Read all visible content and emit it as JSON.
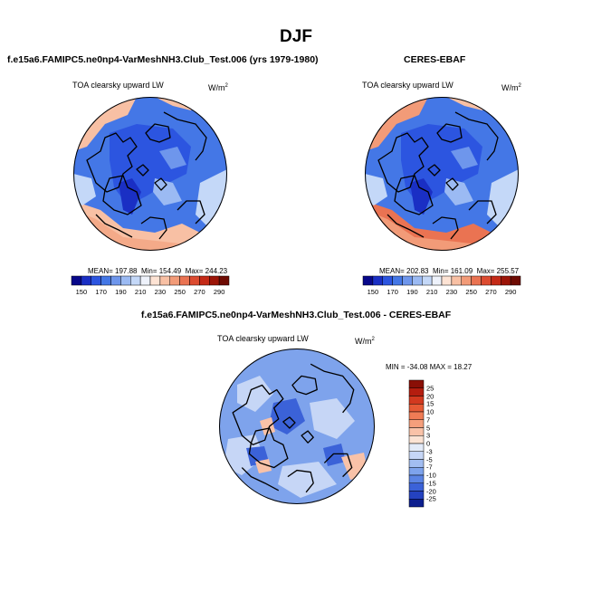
{
  "season": "DJF",
  "model_title": "f.e15a6.FAMIPC5.ne0np4-VarMeshNH3.Club_Test.006 (yrs 1979-1980)",
  "obs_title": "CERES-EBAF",
  "diff_title": "f.e15a6.FAMIPC5.ne0np4-VarMeshNH3.Club_Test.006 - CERES-EBAF",
  "variable": "TOA clearsky upward LW",
  "units_base": "W/m",
  "units_exp": "2",
  "panels": {
    "model": {
      "mean": "MEAN= 197.88",
      "min": "Min= 154.49",
      "max": "Max= 244.23"
    },
    "obs": {
      "mean": "MEAN= 202.83",
      "min": "Min= 161.09",
      "max": "Max= 255.57"
    },
    "diff": {
      "minmax": "MIN = -34.08 MAX =  18.27"
    }
  },
  "colorbar_abs": {
    "labels": [
      "150",
      "170",
      "190",
      "210",
      "230",
      "250",
      "270",
      "290"
    ],
    "colors": [
      "#08088a",
      "#1a2fc4",
      "#2c55e0",
      "#4477e6",
      "#6e96ec",
      "#9bbaf3",
      "#c4d8f8",
      "#eef2fb",
      "#fde3d4",
      "#f8c0a4",
      "#f29b78",
      "#ea7352",
      "#dc4b30",
      "#c42a17",
      "#9c1508",
      "#6e0b03"
    ]
  },
  "colorbar_diff": {
    "labels": [
      "25",
      "20",
      "15",
      "10",
      "7",
      "5",
      "3",
      "0",
      "-3",
      "-5",
      "-7",
      "-10",
      "-15",
      "-20",
      "-25"
    ],
    "colors": [
      "#8a0f06",
      "#b41d0f",
      "#d2391f",
      "#e65a35",
      "#f07c55",
      "#f59f7c",
      "#f9c2a8",
      "#fbe3d4",
      "#e3ebf9",
      "#c6d6f6",
      "#a2bdf1",
      "#7ea3ec",
      "#5b84e4",
      "#3b62d8",
      "#2442c0",
      "#0d1f8f"
    ]
  },
  "map_colors": {
    "ocean_blue": "#6e96ec",
    "deep_blue": "#2c55e0",
    "mid_blue": "#4477e6",
    "light_blue": "#9bbaf3",
    "pale": "#c4d8f8",
    "warm": "#f8c0a4",
    "warmer": "#f29b78",
    "warmest": "#ea7352",
    "diff_base": "#7ea3ec",
    "diff_light": "#c6d6f6",
    "diff_dark": "#3b62d8",
    "diff_warm": "#f9c2a8"
  }
}
